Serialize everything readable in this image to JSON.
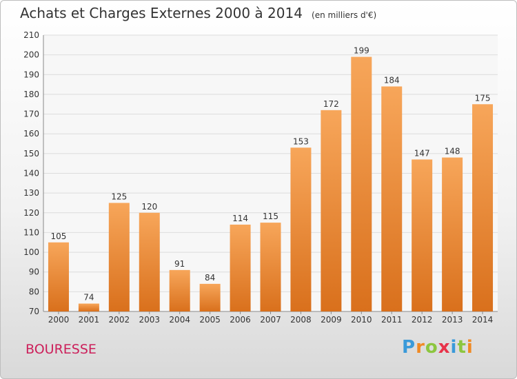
{
  "chart_data": {
    "type": "bar",
    "title": "Achats et Charges Externes 2000 à 2014",
    "subtitle": "(en milliers d'€)",
    "xlabel": "",
    "ylabel": "",
    "categories": [
      "2000",
      "2001",
      "2002",
      "2003",
      "2004",
      "2005",
      "2006",
      "2007",
      "2008",
      "2009",
      "2010",
      "2011",
      "2012",
      "2013",
      "2014"
    ],
    "values": [
      105,
      74,
      125,
      120,
      91,
      84,
      114,
      115,
      153,
      172,
      199,
      184,
      147,
      148,
      175
    ],
    "ylim": [
      70,
      210
    ],
    "yticks": [
      70,
      80,
      90,
      100,
      110,
      120,
      130,
      140,
      150,
      160,
      170,
      180,
      190,
      200,
      210
    ],
    "grid": true,
    "bar_color_top": "#f7a65a",
    "bar_color_bottom": "#d9701c",
    "data_labels": true
  },
  "footer": {
    "commune": "BOURESSE",
    "brand_letters": [
      "P",
      "r",
      "o",
      "x",
      "i",
      "t",
      "i"
    ],
    "brand_colors": [
      "#3a9ad9",
      "#f08a24",
      "#8cc63f",
      "#e8334a",
      "#3a9ad9",
      "#8cc63f",
      "#f08a24"
    ]
  }
}
